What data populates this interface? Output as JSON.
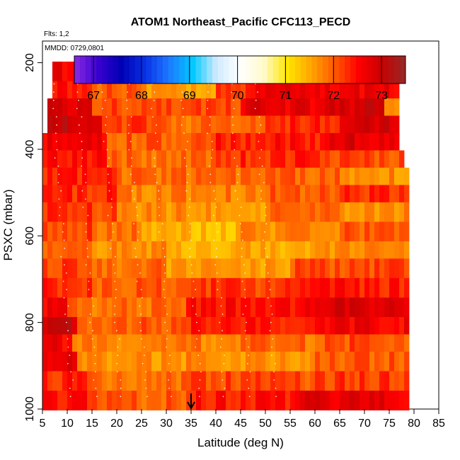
{
  "chart_data": {
    "type": "heatmap",
    "title": "ATOM1 Northeast_Pacific CFC113_PECD",
    "flights_label": "Flts: 1,2",
    "mmdd_label": "MMDD: 0729,0801",
    "xlabel": "Latitude (deg N)",
    "ylabel": "PSXC (mbar)",
    "xlim": [
      5,
      85
    ],
    "ylim": [
      1000,
      150
    ],
    "x_ticks": [
      "5",
      "10",
      "15",
      "20",
      "25",
      "30",
      "35",
      "40",
      "45",
      "50",
      "55",
      "60",
      "65",
      "70",
      "75",
      "80",
      "85"
    ],
    "y_ticks": [
      "200",
      "400",
      "600",
      "800",
      "1000"
    ],
    "colorbar": {
      "range": [
        66.6,
        73.5
      ],
      "ticks": [
        "67",
        "68",
        "69",
        "70",
        "71",
        "72",
        "73"
      ],
      "colors": [
        "#8a2be2",
        "#3a00d0",
        "#0000b4",
        "#0a32e6",
        "#1e78ff",
        "#00c8ff",
        "#cfeaff",
        "#ffffff",
        "#fffacd",
        "#ffe600",
        "#ffa500",
        "#ff5a00",
        "#ff0000",
        "#c80000",
        "#962a2a"
      ]
    },
    "arrow_latitude": 35,
    "pressure_levels": [
      220,
      265,
      305,
      345,
      385,
      425,
      465,
      505,
      545,
      590,
      635,
      675,
      720,
      765,
      810,
      850,
      890,
      935,
      980
    ],
    "rows": [
      {
        "p": 220,
        "segments": [
          [
            7,
            20,
            72.6
          ],
          [
            20,
            45,
            72.4
          ],
          [
            45,
            58,
            72.9
          ],
          [
            58,
            76,
            71.5
          ]
        ]
      },
      {
        "p": 265,
        "segments": [
          [
            7,
            15,
            72.5
          ],
          [
            15,
            25,
            72.0
          ],
          [
            25,
            40,
            71.6
          ],
          [
            40,
            48,
            72.2
          ],
          [
            48,
            58,
            72.8
          ],
          [
            58,
            77,
            72.6
          ]
        ]
      },
      {
        "p": 305,
        "segments": [
          [
            6,
            15,
            72.8
          ],
          [
            15,
            45,
            72.1
          ],
          [
            45,
            62,
            72.7
          ],
          [
            62,
            74,
            72.9
          ],
          [
            74,
            77,
            71.5
          ]
        ]
      },
      {
        "p": 345,
        "segments": [
          [
            6,
            17,
            73.0
          ],
          [
            17,
            30,
            72.2
          ],
          [
            30,
            50,
            71.9
          ],
          [
            50,
            65,
            72.3
          ],
          [
            65,
            77,
            72.9
          ]
        ]
      },
      {
        "p": 385,
        "segments": [
          [
            5,
            18,
            72.6
          ],
          [
            18,
            40,
            72.0
          ],
          [
            40,
            63,
            72.4
          ],
          [
            63,
            77,
            72.8
          ]
        ]
      },
      {
        "p": 425,
        "segments": [
          [
            5,
            18,
            72.4
          ],
          [
            18,
            40,
            71.9
          ],
          [
            40,
            62,
            72.3
          ],
          [
            62,
            78,
            72.1
          ]
        ]
      },
      {
        "p": 465,
        "segments": [
          [
            5,
            20,
            72.3
          ],
          [
            20,
            45,
            71.9
          ],
          [
            45,
            65,
            72.0
          ],
          [
            65,
            79,
            71.7
          ]
        ]
      },
      {
        "p": 505,
        "segments": [
          [
            5,
            20,
            72.3
          ],
          [
            20,
            35,
            71.8
          ],
          [
            35,
            50,
            71.8
          ],
          [
            50,
            65,
            72.0
          ],
          [
            65,
            79,
            72.3
          ]
        ]
      },
      {
        "p": 545,
        "segments": [
          [
            5,
            20,
            72.2
          ],
          [
            20,
            35,
            71.7
          ],
          [
            35,
            50,
            71.6
          ],
          [
            50,
            65,
            71.9
          ],
          [
            65,
            79,
            71.7
          ]
        ]
      },
      {
        "p": 590,
        "segments": [
          [
            5,
            15,
            72.2
          ],
          [
            15,
            25,
            71.9
          ],
          [
            25,
            45,
            71.4
          ],
          [
            45,
            65,
            71.7
          ],
          [
            65,
            79,
            72.0
          ]
        ]
      },
      {
        "p": 635,
        "segments": [
          [
            5,
            15,
            72.1
          ],
          [
            15,
            30,
            71.7
          ],
          [
            30,
            60,
            71.5
          ],
          [
            60,
            79,
            71.7
          ]
        ]
      },
      {
        "p": 675,
        "segments": [
          [
            5,
            15,
            72.2
          ],
          [
            15,
            30,
            71.9
          ],
          [
            30,
            55,
            71.6
          ],
          [
            55,
            79,
            72.1
          ]
        ]
      },
      {
        "p": 720,
        "segments": [
          [
            5,
            15,
            72.3
          ],
          [
            15,
            35,
            72.0
          ],
          [
            35,
            55,
            72.2
          ],
          [
            55,
            79,
            72.4
          ]
        ]
      },
      {
        "p": 765,
        "segments": [
          [
            5,
            10,
            72.6
          ],
          [
            10,
            34,
            71.9
          ],
          [
            34,
            60,
            72.5
          ],
          [
            60,
            79,
            72.8
          ]
        ]
      },
      {
        "p": 810,
        "segments": [
          [
            5,
            12,
            73.0
          ],
          [
            12,
            35,
            72.0
          ],
          [
            35,
            60,
            72.4
          ],
          [
            60,
            79,
            72.6
          ]
        ]
      },
      {
        "p": 850,
        "segments": [
          [
            5,
            11,
            72.6
          ],
          [
            11,
            40,
            71.8
          ],
          [
            40,
            60,
            71.9
          ],
          [
            60,
            79,
            72.1
          ]
        ]
      },
      {
        "p": 890,
        "segments": [
          [
            5,
            12,
            72.8
          ],
          [
            12,
            25,
            71.6
          ],
          [
            25,
            60,
            71.7
          ],
          [
            60,
            79,
            72.0
          ]
        ]
      },
      {
        "p": 935,
        "segments": [
          [
            5,
            15,
            72.3
          ],
          [
            15,
            35,
            71.9
          ],
          [
            35,
            60,
            72.1
          ],
          [
            60,
            79,
            72.2
          ]
        ]
      },
      {
        "p": 980,
        "segments": [
          [
            5,
            15,
            72.4
          ],
          [
            15,
            35,
            72.0
          ],
          [
            35,
            55,
            72.4
          ],
          [
            55,
            79,
            72.7
          ]
        ]
      }
    ]
  }
}
